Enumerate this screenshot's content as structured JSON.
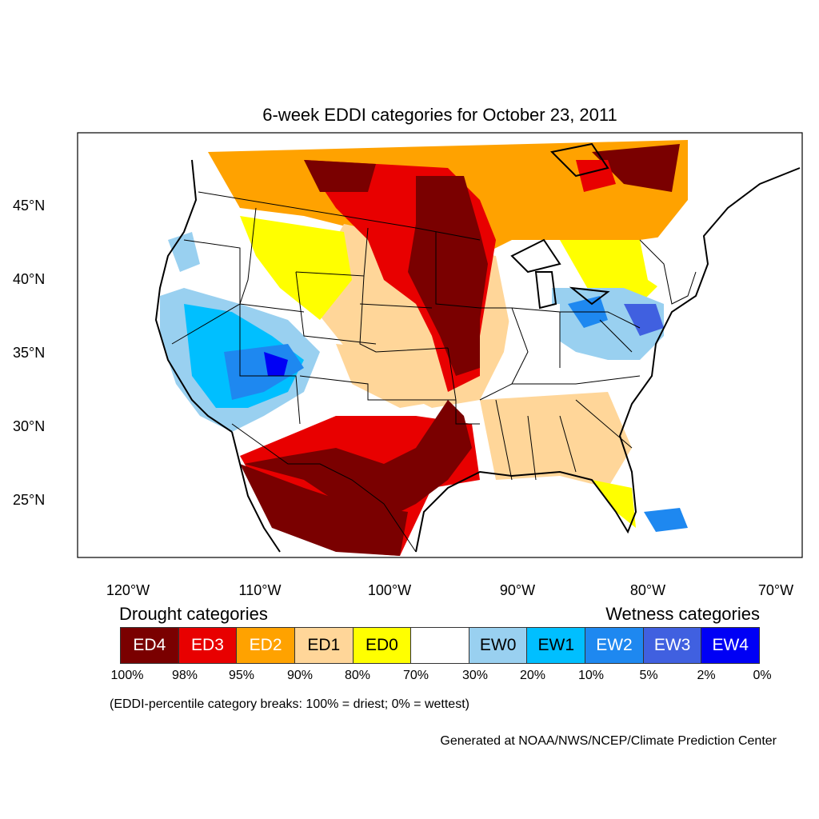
{
  "title": "6-week EDDI categories for October 23, 2011",
  "y_axis_labels": [
    "45°N",
    "40°N",
    "35°N",
    "30°N",
    "25°N"
  ],
  "x_axis_labels": [
    "120°W",
    "110°W",
    "100°W",
    "90°W",
    "80°W",
    "70°W"
  ],
  "legend": {
    "drought_heading": "Drought categories",
    "wetness_heading": "Wetness categories",
    "categories": [
      {
        "label": "ED4",
        "color": "#7a0000",
        "text_color": "#ffffff"
      },
      {
        "label": "ED3",
        "color": "#e80000",
        "text_color": "#ffffff"
      },
      {
        "label": "ED2",
        "color": "#ffa200",
        "text_color": "#ffffff"
      },
      {
        "label": "ED1",
        "color": "#ffd699",
        "text_color": "#000000"
      },
      {
        "label": "ED0",
        "color": "#ffff00",
        "text_color": "#000000"
      },
      {
        "label": "",
        "color": "#ffffff",
        "text_color": "#000000"
      },
      {
        "label": "EW0",
        "color": "#99d0f0",
        "text_color": "#000000"
      },
      {
        "label": "EW1",
        "color": "#00bfff",
        "text_color": "#000000"
      },
      {
        "label": "EW2",
        "color": "#1e88f0",
        "text_color": "#ffffff"
      },
      {
        "label": "EW3",
        "color": "#4060e0",
        "text_color": "#ffffff"
      },
      {
        "label": "EW4",
        "color": "#0000f5",
        "text_color": "#ffffff"
      }
    ],
    "breaks": [
      "100%",
      "98%",
      "95%",
      "90%",
      "80%",
      "70%",
      "30%",
      "20%",
      "10%",
      "5%",
      "2%",
      "0%"
    ]
  },
  "note": "(EDDI-percentile category breaks: 100% = driest; 0% = wettest)",
  "credit": "Generated at NOAA/NWS/NCEP/Climate Prediction Center"
}
